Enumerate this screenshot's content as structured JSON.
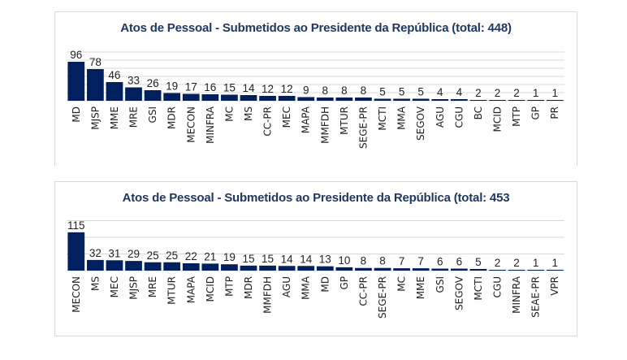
{
  "colors": {
    "bar": "#002060",
    "title": "#1f3864",
    "grid": "#d9d9d9"
  },
  "chart_data": [
    {
      "type": "bar",
      "title": "Atos de Pessoal - Submetidos ao Presidente da República (total: 448)",
      "xlabel": "",
      "ylabel": "",
      "ylim": [
        0,
        120
      ],
      "grid_step": 20,
      "grid": true,
      "legend": "none",
      "categories": [
        "MD",
        "MJSP",
        "MME",
        "MRE",
        "GSI",
        "MDR",
        "MECON",
        "MINFRA",
        "MC",
        "MS",
        "CC-PR",
        "MEC",
        "MAPA",
        "MMFDH",
        "MTUR",
        "SEGE-PR",
        "MCTI",
        "MMA",
        "SEGOV",
        "AGU",
        "CGU",
        "BC",
        "MCID",
        "MTP",
        "GP",
        "PR"
      ],
      "values": [
        96,
        78,
        46,
        33,
        26,
        19,
        17,
        16,
        15,
        14,
        12,
        12,
        9,
        8,
        8,
        8,
        5,
        5,
        5,
        4,
        4,
        2,
        2,
        2,
        1,
        1
      ]
    },
    {
      "type": "bar",
      "title": "Atos de Pessoal - Submetidos ao Presidente da República (total: 453",
      "xlabel": "",
      "ylabel": "",
      "ylim": [
        0,
        150
      ],
      "grid_step": 50,
      "grid": true,
      "legend": "none",
      "categories": [
        "MECON",
        "MS",
        "MEC",
        "MJSP",
        "MRE",
        "MTUR",
        "MAPA",
        "MCID",
        "MTP",
        "MDR",
        "MMFDH",
        "AGU",
        "MMA",
        "MD",
        "GP",
        "CC-PR",
        "SEGE-PR",
        "MC",
        "MME",
        "GSI",
        "SEGOV",
        "MCTI",
        "CGU",
        "MINFRA",
        "SEAE-PR",
        "VPR"
      ],
      "values": [
        115,
        32,
        31,
        29,
        25,
        25,
        22,
        21,
        19,
        15,
        15,
        14,
        14,
        13,
        10,
        8,
        8,
        7,
        7,
        6,
        6,
        5,
        2,
        2,
        1,
        1
      ]
    }
  ]
}
